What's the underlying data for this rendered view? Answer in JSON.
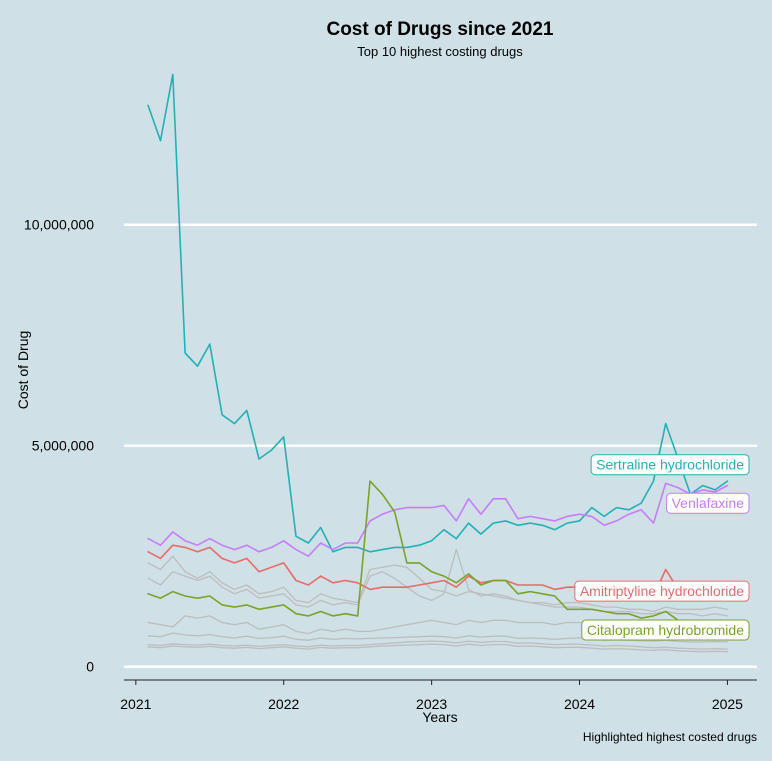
{
  "chart_data": {
    "type": "line",
    "title": "Cost of Drugs since 2021",
    "subtitle": "Top 10 highest costing drugs",
    "xlabel": "Years",
    "ylabel": "Cost of Drug",
    "caption": "Highlighted highest costed drugs",
    "xlim": [
      2020.92,
      2025.2
    ],
    "ylim": [
      -300000,
      13500000
    ],
    "x_ticks": [
      2021,
      2022,
      2023,
      2024,
      2025
    ],
    "x_tick_labels": [
      "2021",
      "2022",
      "2023",
      "2024",
      "2025"
    ],
    "y_ticks": [
      0,
      5000000,
      10000000
    ],
    "y_tick_labels": [
      "0",
      "5,000,000",
      "10,000,000"
    ],
    "grid": "horizontal major lines only",
    "legend": "none; direct labels at right end of highlighted series",
    "x": [
      2021.083,
      2021.167,
      2021.25,
      2021.333,
      2021.417,
      2021.5,
      2021.583,
      2021.667,
      2021.75,
      2021.833,
      2021.917,
      2022.0,
      2022.083,
      2022.167,
      2022.25,
      2022.333,
      2022.417,
      2022.5,
      2022.583,
      2022.667,
      2022.75,
      2022.833,
      2022.917,
      2023.0,
      2023.083,
      2023.167,
      2023.25,
      2023.333,
      2023.417,
      2023.5,
      2023.583,
      2023.667,
      2023.75,
      2023.833,
      2023.917,
      2024.0,
      2024.083,
      2024.167,
      2024.25,
      2024.333,
      2024.417,
      2024.5,
      2024.583,
      2024.667,
      2024.75,
      2024.833,
      2024.917,
      2025.0
    ],
    "series": [
      {
        "name": "Sertraline hydrochloride",
        "color": "#22b1b4",
        "highlight": true,
        "values": [
          12700000,
          11900000,
          13400000,
          7100000,
          6800000,
          7300000,
          5700000,
          5500000,
          5800000,
          4700000,
          4900000,
          5200000,
          2950000,
          2800000,
          3150000,
          2600000,
          2700000,
          2700000,
          2600000,
          2650000,
          2700000,
          2700000,
          2750000,
          2850000,
          3100000,
          2900000,
          3250000,
          3000000,
          3250000,
          3300000,
          3200000,
          3250000,
          3200000,
          3100000,
          3250000,
          3300000,
          3600000,
          3400000,
          3600000,
          3550000,
          3700000,
          4200000,
          5500000,
          4700000,
          3900000,
          4100000,
          4000000,
          4200000
        ]
      },
      {
        "name": "Venlafaxine",
        "color": "#c77cff",
        "highlight": true,
        "values": [
          2900000,
          2750000,
          3050000,
          2850000,
          2750000,
          2900000,
          2750000,
          2650000,
          2750000,
          2600000,
          2700000,
          2850000,
          2650000,
          2500000,
          2800000,
          2650000,
          2800000,
          2800000,
          3300000,
          3450000,
          3550000,
          3600000,
          3600000,
          3600000,
          3650000,
          3300000,
          3800000,
          3450000,
          3800000,
          3800000,
          3350000,
          3400000,
          3350000,
          3300000,
          3400000,
          3450000,
          3400000,
          3200000,
          3300000,
          3450000,
          3550000,
          3250000,
          4150000,
          4050000,
          3900000,
          4000000,
          3950000,
          4100000
        ]
      },
      {
        "name": "Amitriptyline hydrochloride",
        "color": "#e86b6b",
        "highlight": true,
        "values": [
          2600000,
          2450000,
          2750000,
          2700000,
          2600000,
          2700000,
          2450000,
          2350000,
          2450000,
          2150000,
          2250000,
          2350000,
          1950000,
          1850000,
          2050000,
          1900000,
          1950000,
          1900000,
          1750000,
          1800000,
          1800000,
          1800000,
          1850000,
          1900000,
          1950000,
          1800000,
          2050000,
          1900000,
          1950000,
          1950000,
          1850000,
          1850000,
          1850000,
          1750000,
          1800000,
          1800000,
          1750000,
          1650000,
          1700000,
          1700000,
          1650000,
          1600000,
          2200000,
          1750000,
          1700000,
          1650000,
          1650000,
          1650000
        ]
      },
      {
        "name": "Citalopram hydrobromide",
        "color": "#7aa32a",
        "highlight": true,
        "values": [
          1650000,
          1550000,
          1700000,
          1600000,
          1550000,
          1600000,
          1400000,
          1350000,
          1400000,
          1300000,
          1350000,
          1400000,
          1200000,
          1150000,
          1250000,
          1150000,
          1200000,
          1150000,
          4200000,
          3900000,
          3500000,
          2350000,
          2350000,
          2150000,
          2050000,
          1900000,
          2100000,
          1850000,
          1950000,
          1950000,
          1650000,
          1700000,
          1650000,
          1600000,
          1300000,
          1300000,
          1300000,
          1250000,
          1200000,
          1200000,
          1100000,
          1150000,
          1250000,
          1050000,
          950000,
          900000,
          900000,
          900000
        ]
      },
      {
        "name": "",
        "color": "#bdbdbd",
        "highlight": false,
        "values": [
          2350000,
          2200000,
          2500000,
          2150000,
          2000000,
          2150000,
          1900000,
          1750000,
          1850000,
          1650000,
          1700000,
          1800000,
          1500000,
          1450000,
          1650000,
          1550000,
          1500000,
          1450000,
          2200000,
          2250000,
          2300000,
          2250000,
          2000000,
          1750000,
          1700000,
          1600000,
          1700000,
          1650000,
          1600000,
          1550000,
          1500000,
          1450000,
          1450000,
          1400000,
          1450000,
          1450000,
          1400000,
          1350000,
          1350000,
          1300000,
          1300000,
          1250000,
          1350000,
          1300000,
          1300000,
          1300000,
          1350000,
          1300000
        ]
      },
      {
        "name": "",
        "color": "#bdbdbd",
        "highlight": false,
        "values": [
          2000000,
          1850000,
          2150000,
          2050000,
          1950000,
          2050000,
          1800000,
          1650000,
          1750000,
          1550000,
          1600000,
          1650000,
          1400000,
          1350000,
          1500000,
          1400000,
          1450000,
          1400000,
          2050000,
          2150000,
          2000000,
          1800000,
          1600000,
          1500000,
          1650000,
          2650000,
          1750000,
          1600000,
          1650000,
          1600000,
          1500000,
          1450000,
          1400000,
          1350000,
          1350000,
          1350000,
          1300000,
          1250000,
          1250000,
          1250000,
          1200000,
          1200000,
          1250000,
          1200000,
          1200000,
          1150000,
          1200000,
          1150000
        ]
      },
      {
        "name": "",
        "color": "#bdbdbd",
        "highlight": false,
        "values": [
          1000000,
          950000,
          900000,
          1150000,
          1100000,
          1150000,
          1000000,
          950000,
          1000000,
          850000,
          900000,
          950000,
          800000,
          750000,
          850000,
          800000,
          850000,
          800000,
          800000,
          850000,
          900000,
          950000,
          1000000,
          1050000,
          1000000,
          950000,
          1050000,
          1000000,
          1050000,
          1050000,
          1000000,
          1000000,
          1000000,
          950000,
          1000000,
          1000000,
          950000,
          950000,
          950000,
          950000,
          900000,
          900000,
          950000,
          900000,
          900000,
          900000,
          950000,
          950000
        ]
      },
      {
        "name": "",
        "color": "#bdbdbd",
        "highlight": false,
        "values": [
          700000,
          680000,
          760000,
          720000,
          700000,
          730000,
          680000,
          650000,
          690000,
          640000,
          660000,
          690000,
          620000,
          600000,
          650000,
          620000,
          640000,
          630000,
          640000,
          650000,
          660000,
          670000,
          680000,
          690000,
          680000,
          650000,
          700000,
          670000,
          690000,
          690000,
          640000,
          650000,
          640000,
          620000,
          640000,
          650000,
          630000,
          600000,
          610000,
          600000,
          590000,
          580000,
          600000,
          570000,
          560000,
          560000,
          570000,
          560000
        ]
      },
      {
        "name": "",
        "color": "#bdbdbd",
        "highlight": false,
        "values": [
          500000,
          480000,
          520000,
          500000,
          490000,
          510000,
          480000,
          470000,
          490000,
          460000,
          480000,
          500000,
          470000,
          450000,
          490000,
          470000,
          480000,
          480000,
          500000,
          520000,
          540000,
          560000,
          570000,
          580000,
          570000,
          540000,
          580000,
          550000,
          570000,
          570000,
          530000,
          540000,
          520000,
          500000,
          510000,
          510000,
          490000,
          470000,
          480000,
          470000,
          450000,
          430000,
          440000,
          420000,
          410000,
          400000,
          410000,
          400000
        ]
      },
      {
        "name": "",
        "color": "#bdbdbd",
        "highlight": false,
        "values": [
          450000,
          430000,
          470000,
          450000,
          440000,
          460000,
          430000,
          420000,
          440000,
          410000,
          430000,
          450000,
          420000,
          400000,
          440000,
          420000,
          430000,
          430000,
          450000,
          470000,
          480000,
          490000,
          500000,
          510000,
          500000,
          470000,
          510000,
          480000,
          500000,
          500000,
          460000,
          470000,
          450000,
          430000,
          440000,
          440000,
          420000,
          400000,
          410000,
          400000,
          380000,
          370000,
          380000,
          360000,
          350000,
          340000,
          350000,
          340000
        ]
      }
    ],
    "labels": [
      {
        "series": "Sertraline hydrochloride",
        "text": "Sertraline hydrochloride",
        "y": 4570000
      },
      {
        "series": "Venlafaxine",
        "text": "Venlafaxine",
        "y": 3700000
      },
      {
        "series": "Amitriptyline hydrochloride",
        "text": "Amitriptyline hydrochloride",
        "y": 1710000
      },
      {
        "series": "Citalopram hydrobromide",
        "text": "Citalopram hydrobromide",
        "y": 830000
      }
    ]
  }
}
